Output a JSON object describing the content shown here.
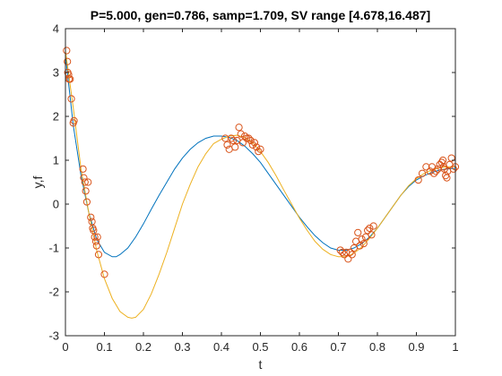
{
  "chart_data": {
    "type": "line",
    "title": "P=5.000, gen=0.786, samp=1.709, SV range [4.678,16.487]",
    "xlabel": "t",
    "ylabel": "y,f",
    "xlim": [
      0,
      1
    ],
    "ylim": [
      -3,
      4
    ],
    "xticks": [
      0,
      0.1,
      0.2,
      0.3,
      0.4,
      0.5,
      0.6,
      0.7,
      0.8,
      0.9,
      1
    ],
    "xtick_labels": [
      "0",
      "0.1",
      "0.2",
      "0.3",
      "0.4",
      "0.5",
      "0.6",
      "0.7",
      "0.8",
      "0.9",
      "1"
    ],
    "yticks": [
      -3,
      -2,
      -1,
      0,
      1,
      2,
      3,
      4
    ],
    "ytick_labels": [
      "-3",
      "-2",
      "-1",
      "0",
      "1",
      "2",
      "3",
      "4"
    ],
    "grid": false,
    "legend": false,
    "series": [
      {
        "kind": "line",
        "color": "#0072BD",
        "x": [
          0,
          0.02,
          0.04,
          0.06,
          0.08,
          0.1,
          0.12,
          0.13,
          0.14,
          0.16,
          0.18,
          0.2,
          0.22,
          0.24,
          0.26,
          0.28,
          0.3,
          0.32,
          0.34,
          0.36,
          0.38,
          0.4,
          0.42,
          0.44,
          0.46,
          0.48,
          0.5,
          0.52,
          0.54,
          0.56,
          0.58,
          0.6,
          0.62,
          0.64,
          0.66,
          0.68,
          0.7,
          0.72,
          0.74,
          0.76,
          0.78,
          0.8,
          0.82,
          0.84,
          0.86,
          0.88,
          0.9,
          0.92,
          0.94,
          0.96,
          0.98,
          1.0
        ],
        "y": [
          3.4,
          1.8,
          0.65,
          -0.2,
          -0.8,
          -1.1,
          -1.2,
          -1.2,
          -1.15,
          -1.0,
          -0.75,
          -0.45,
          -0.12,
          0.2,
          0.5,
          0.8,
          1.05,
          1.25,
          1.4,
          1.5,
          1.55,
          1.55,
          1.52,
          1.45,
          1.32,
          1.15,
          0.95,
          0.7,
          0.45,
          0.2,
          -0.05,
          -0.3,
          -0.52,
          -0.72,
          -0.88,
          -1.0,
          -1.05,
          -1.05,
          -1.0,
          -0.9,
          -0.75,
          -0.55,
          -0.3,
          -0.05,
          0.2,
          0.4,
          0.55,
          0.65,
          0.72,
          0.78,
          0.8,
          0.82
        ]
      },
      {
        "kind": "line",
        "color": "#EDB120",
        "x": [
          0,
          0.02,
          0.04,
          0.06,
          0.08,
          0.1,
          0.12,
          0.14,
          0.16,
          0.17,
          0.18,
          0.2,
          0.22,
          0.24,
          0.26,
          0.28,
          0.3,
          0.32,
          0.34,
          0.36,
          0.38,
          0.4,
          0.42,
          0.44,
          0.46,
          0.48,
          0.5,
          0.52,
          0.54,
          0.56,
          0.58,
          0.6,
          0.62,
          0.64,
          0.66,
          0.68,
          0.7,
          0.72,
          0.74,
          0.76,
          0.78,
          0.8,
          0.82,
          0.84,
          0.86,
          0.88,
          0.9,
          0.92,
          0.94,
          0.96,
          0.98,
          1.0
        ],
        "y": [
          3.5,
          2.2,
          0.8,
          -0.2,
          -1.05,
          -1.7,
          -2.15,
          -2.45,
          -2.58,
          -2.6,
          -2.58,
          -2.4,
          -2.05,
          -1.6,
          -1.1,
          -0.55,
          0.0,
          0.45,
          0.85,
          1.15,
          1.38,
          1.48,
          1.55,
          1.57,
          1.52,
          1.4,
          1.2,
          0.95,
          0.65,
          0.32,
          0.0,
          -0.32,
          -0.6,
          -0.85,
          -1.03,
          -1.15,
          -1.2,
          -1.2,
          -1.12,
          -0.98,
          -0.78,
          -0.55,
          -0.3,
          -0.05,
          0.2,
          0.42,
          0.58,
          0.7,
          0.78,
          0.83,
          0.85,
          0.86
        ]
      },
      {
        "kind": "scatter",
        "marker": "circle",
        "color": "#D95319",
        "x": [
          0.003,
          0.005,
          0.006,
          0.008,
          0.009,
          0.012,
          0.015,
          0.02,
          0.022,
          0.045,
          0.047,
          0.05,
          0.052,
          0.055,
          0.058,
          0.065,
          0.068,
          0.07,
          0.072,
          0.075,
          0.078,
          0.08,
          0.082,
          0.085,
          0.1,
          0.41,
          0.415,
          0.42,
          0.425,
          0.43,
          0.435,
          0.44,
          0.445,
          0.45,
          0.455,
          0.46,
          0.465,
          0.47,
          0.475,
          0.48,
          0.485,
          0.49,
          0.495,
          0.5,
          0.705,
          0.71,
          0.715,
          0.72,
          0.725,
          0.73,
          0.735,
          0.74,
          0.745,
          0.75,
          0.755,
          0.76,
          0.765,
          0.77,
          0.775,
          0.78,
          0.785,
          0.79,
          0.905,
          0.915,
          0.925,
          0.935,
          0.94,
          0.945,
          0.95,
          0.955,
          0.96,
          0.965,
          0.968,
          0.97,
          0.972,
          0.975,
          0.978,
          0.98,
          0.985,
          0.99,
          0.995,
          1.0
        ],
        "y": [
          3.5,
          3.25,
          3.0,
          2.95,
          2.85,
          2.85,
          2.4,
          1.85,
          1.9,
          0.8,
          0.6,
          0.5,
          0.3,
          0.05,
          0.5,
          -0.3,
          -0.4,
          -0.55,
          -0.6,
          -0.75,
          -0.85,
          -0.95,
          -0.75,
          -1.15,
          -1.6,
          1.5,
          1.35,
          1.25,
          1.5,
          1.45,
          1.3,
          1.45,
          1.75,
          1.6,
          1.4,
          1.55,
          1.5,
          1.5,
          1.45,
          1.35,
          1.4,
          1.3,
          1.2,
          1.25,
          -1.05,
          -1.1,
          -1.15,
          -1.1,
          -1.25,
          -1.1,
          -1.15,
          -1.0,
          -0.85,
          -0.65,
          -0.95,
          -0.8,
          -0.9,
          -0.75,
          -0.6,
          -0.55,
          -0.7,
          -0.5,
          0.55,
          0.7,
          0.85,
          0.75,
          0.85,
          0.7,
          0.75,
          0.8,
          0.9,
          0.95,
          1.0,
          0.85,
          0.8,
          0.65,
          0.6,
          0.75,
          0.9,
          1.05,
          0.8,
          0.85
        ]
      }
    ]
  }
}
